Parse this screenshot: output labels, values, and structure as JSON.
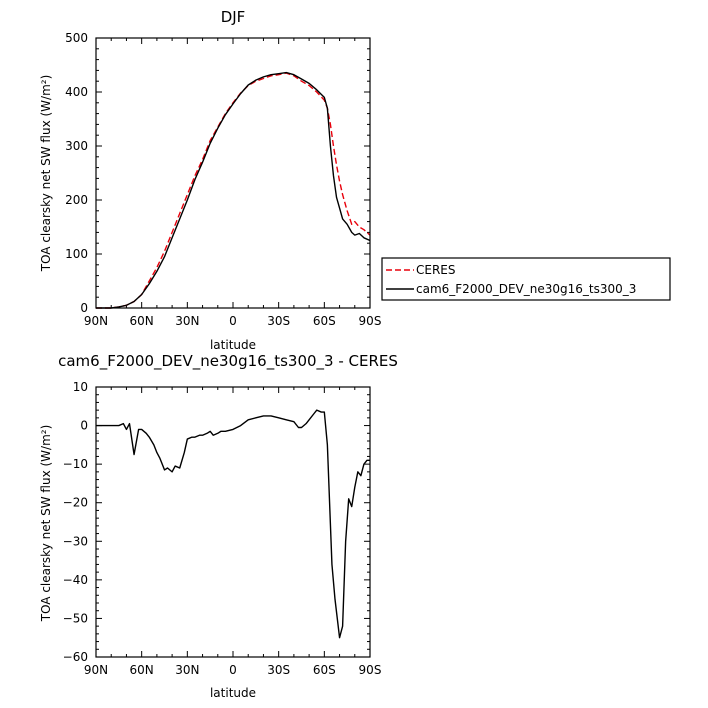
{
  "chart_data": [
    {
      "type": "line",
      "title": "DJF",
      "xlabel": "latitude",
      "ylabel": "TOA clearsky net SW flux (W/m²)",
      "xlim": [
        -90,
        90
      ],
      "ylim": [
        0,
        500
      ],
      "xticks": [
        -90,
        -60,
        -30,
        0,
        30,
        60,
        90
      ],
      "xtick_labels": [
        "90N",
        "60N",
        "30N",
        "0",
        "30S",
        "60S",
        "90S"
      ],
      "yticks": [
        0,
        100,
        200,
        300,
        400,
        500
      ],
      "ytick_labels": [
        "0",
        "100",
        "200",
        "300",
        "400",
        "500"
      ],
      "grid": false,
      "legend": "right",
      "series": [
        {
          "name": "CERES",
          "color": "#e8000b",
          "dash": "dashed",
          "x": [
            -90,
            -80,
            -75,
            -70,
            -65,
            -60,
            -55,
            -50,
            -45,
            -40,
            -35,
            -30,
            -25,
            -20,
            -15,
            -10,
            -5,
            0,
            5,
            10,
            15,
            20,
            25,
            30,
            35,
            40,
            45,
            50,
            55,
            60,
            62,
            64,
            66,
            68,
            70,
            72,
            75,
            78,
            80,
            83,
            86,
            90
          ],
          "y": [
            0,
            0,
            2,
            5,
            12,
            25,
            50,
            75,
            105,
            140,
            175,
            210,
            245,
            275,
            310,
            335,
            360,
            380,
            398,
            412,
            420,
            425,
            430,
            432,
            435,
            430,
            420,
            412,
            400,
            385,
            370,
            340,
            300,
            265,
            235,
            210,
            180,
            155,
            160,
            150,
            145,
            135
          ]
        },
        {
          "name": "cam6_F2000_DEV_ne30g16_ts300_3",
          "color": "#000000",
          "dash": "solid",
          "x": [
            -90,
            -80,
            -75,
            -70,
            -65,
            -60,
            -55,
            -50,
            -45,
            -40,
            -35,
            -30,
            -25,
            -20,
            -15,
            -10,
            -5,
            0,
            5,
            10,
            15,
            20,
            25,
            30,
            35,
            40,
            45,
            50,
            55,
            60,
            62,
            64,
            66,
            68,
            70,
            72,
            75,
            78,
            80,
            83,
            86,
            90
          ],
          "y": [
            0,
            0,
            2,
            5,
            12,
            25,
            45,
            68,
            95,
            130,
            165,
            200,
            238,
            270,
            305,
            333,
            358,
            378,
            397,
            413,
            422,
            428,
            432,
            434,
            436,
            432,
            424,
            416,
            404,
            390,
            370,
            300,
            245,
            205,
            185,
            165,
            155,
            140,
            135,
            138,
            130,
            125
          ]
        }
      ]
    },
    {
      "type": "line",
      "title": "cam6_F2000_DEV_ne30g16_ts300_3 - CERES",
      "xlabel": "latitude",
      "ylabel": "TOA clearsky net SW flux (W/m²)",
      "xlim": [
        -90,
        90
      ],
      "ylim": [
        -60,
        10
      ],
      "xticks": [
        -90,
        -60,
        -30,
        0,
        30,
        60,
        90
      ],
      "xtick_labels": [
        "90N",
        "60N",
        "30N",
        "0",
        "30S",
        "60S",
        "90S"
      ],
      "yticks": [
        -60,
        -50,
        -40,
        -30,
        -20,
        -10,
        0,
        10
      ],
      "ytick_labels": [
        "−60",
        "−50",
        "−40",
        "−30",
        "−20",
        "−10",
        "0",
        "10"
      ],
      "grid": false,
      "series": [
        {
          "color": "#000000",
          "dash": "solid",
          "x": [
            -90,
            -80,
            -75,
            -72,
            -70,
            -68,
            -65,
            -62,
            -60,
            -57,
            -55,
            -52,
            -50,
            -48,
            -45,
            -43,
            -40,
            -38,
            -35,
            -32,
            -30,
            -27,
            -25,
            -22,
            -20,
            -17,
            -15,
            -13,
            -10,
            -8,
            -5,
            0,
            5,
            10,
            15,
            20,
            25,
            30,
            35,
            40,
            43,
            45,
            48,
            50,
            53,
            55,
            58,
            60,
            62,
            65,
            67,
            70,
            72,
            74,
            76,
            78,
            80,
            82,
            84,
            86,
            88,
            90
          ],
          "y": [
            0,
            0,
            0,
            0.5,
            -1,
            0.5,
            -7.5,
            -1,
            -1,
            -2,
            -3,
            -5,
            -7,
            -8.5,
            -11.5,
            -11,
            -12,
            -10.5,
            -11,
            -7,
            -3.5,
            -3,
            -3,
            -2.5,
            -2.5,
            -2,
            -1.5,
            -2.5,
            -2,
            -1.5,
            -1.5,
            -1,
            0,
            1.5,
            2,
            2.5,
            2.5,
            2,
            1.5,
            1,
            -0.5,
            -0.5,
            0.5,
            1.5,
            3,
            4,
            3.5,
            3.5,
            -5,
            -36,
            -45,
            -55,
            -52,
            -30,
            -19,
            -21,
            -16,
            -12,
            -13,
            -10,
            -9,
            -9
          ]
        }
      ]
    }
  ]
}
